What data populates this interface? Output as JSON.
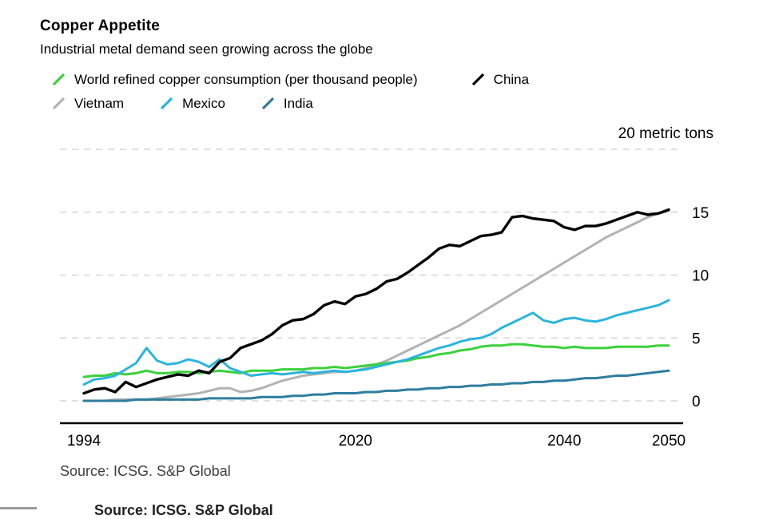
{
  "header": {
    "title": "Copper Appetite",
    "subtitle": "Industrial metal demand seen growing across the globe"
  },
  "source": {
    "text": "Source: ICSG. S&P Global",
    "cropped_text": "Source: ICSG. S&P Global"
  },
  "chart_data": {
    "type": "line",
    "title": "Copper Appetite",
    "subtitle": "Industrial metal demand seen growing across the globe",
    "unit_label": "20 metric tons",
    "legend_position": "top",
    "grid": "dashed horizontal",
    "ylim": [
      -1.8,
      21
    ],
    "yticks": [
      0,
      5,
      10,
      15,
      20
    ],
    "ytick_labels": [
      "0",
      "5",
      "10",
      "15",
      "20 metric tons"
    ],
    "xticks": [
      1994,
      2020,
      2040,
      2050
    ],
    "x": [
      1994,
      1995,
      1996,
      1997,
      1998,
      1999,
      2000,
      2001,
      2002,
      2003,
      2004,
      2005,
      2006,
      2007,
      2008,
      2009,
      2010,
      2011,
      2012,
      2013,
      2014,
      2015,
      2016,
      2017,
      2018,
      2019,
      2020,
      2021,
      2022,
      2023,
      2024,
      2025,
      2026,
      2027,
      2028,
      2029,
      2030,
      2031,
      2032,
      2033,
      2034,
      2035,
      2036,
      2037,
      2038,
      2039,
      2040,
      2041,
      2042,
      2043,
      2044,
      2045,
      2046,
      2047,
      2048,
      2049,
      2050
    ],
    "series": [
      {
        "name": "World refined copper consumption (per thousand people)",
        "color": "#3bd13b",
        "values": [
          1.9,
          2.0,
          2.0,
          2.2,
          2.1,
          2.2,
          2.4,
          2.2,
          2.2,
          2.3,
          2.3,
          2.2,
          2.3,
          2.4,
          2.3,
          2.2,
          2.4,
          2.4,
          2.4,
          2.5,
          2.5,
          2.5,
          2.6,
          2.6,
          2.7,
          2.6,
          2.7,
          2.8,
          2.9,
          3.0,
          3.1,
          3.2,
          3.4,
          3.5,
          3.7,
          3.8,
          4.0,
          4.1,
          4.3,
          4.4,
          4.4,
          4.5,
          4.5,
          4.4,
          4.3,
          4.3,
          4.2,
          4.3,
          4.2,
          4.2,
          4.2,
          4.3,
          4.3,
          4.3,
          4.3,
          4.4,
          4.4
        ]
      },
      {
        "name": "China",
        "color": "#000000",
        "values": [
          0.6,
          0.9,
          1.0,
          0.7,
          1.5,
          1.1,
          1.4,
          1.7,
          1.9,
          2.1,
          2.0,
          2.4,
          2.2,
          3.1,
          3.4,
          4.2,
          4.5,
          4.8,
          5.3,
          6.0,
          6.4,
          6.5,
          6.9,
          7.6,
          7.9,
          7.7,
          8.3,
          8.5,
          8.9,
          9.5,
          9.7,
          10.2,
          10.8,
          11.4,
          12.1,
          12.4,
          12.3,
          12.7,
          13.1,
          13.2,
          13.4,
          14.6,
          14.7,
          14.5,
          14.4,
          14.3,
          13.8,
          13.6,
          13.9,
          13.9,
          14.1,
          14.4,
          14.7,
          15.0,
          14.8,
          14.9,
          15.2
        ]
      },
      {
        "name": "Vietnam",
        "color": "#b2b2b2",
        "values": [
          0.0,
          0.0,
          0.0,
          0.1,
          0.1,
          0.1,
          0.1,
          0.2,
          0.3,
          0.4,
          0.5,
          0.6,
          0.8,
          1.0,
          1.0,
          0.7,
          0.8,
          1.0,
          1.3,
          1.6,
          1.8,
          2.0,
          2.1,
          2.2,
          2.3,
          2.3,
          2.4,
          2.6,
          2.9,
          3.2,
          3.6,
          4.0,
          4.4,
          4.8,
          5.2,
          5.6,
          6.0,
          6.5,
          7.0,
          7.5,
          8.0,
          8.5,
          9.0,
          9.5,
          10.0,
          10.5,
          11.0,
          11.5,
          12.0,
          12.5,
          13.0,
          13.4,
          13.8,
          14.2,
          14.6,
          14.9,
          15.1
        ]
      },
      {
        "name": "Mexico",
        "color": "#2ab4dd",
        "values": [
          1.3,
          1.7,
          1.8,
          2.0,
          2.5,
          3.0,
          4.2,
          3.2,
          2.9,
          3.0,
          3.3,
          3.1,
          2.7,
          3.3,
          2.6,
          2.3,
          2.0,
          2.1,
          2.2,
          2.1,
          2.2,
          2.3,
          2.2,
          2.3,
          2.4,
          2.3,
          2.4,
          2.5,
          2.7,
          2.9,
          3.1,
          3.3,
          3.6,
          3.9,
          4.2,
          4.4,
          4.7,
          4.9,
          5.0,
          5.3,
          5.8,
          6.2,
          6.6,
          7.0,
          6.4,
          6.2,
          6.5,
          6.6,
          6.4,
          6.3,
          6.5,
          6.8,
          7.0,
          7.2,
          7.4,
          7.6,
          8.0
        ]
      },
      {
        "name": "India",
        "color": "#2e7d9e",
        "values": [
          0.0,
          0.0,
          0.0,
          0.0,
          0.0,
          0.1,
          0.1,
          0.1,
          0.1,
          0.1,
          0.1,
          0.1,
          0.2,
          0.2,
          0.2,
          0.2,
          0.2,
          0.3,
          0.3,
          0.3,
          0.4,
          0.4,
          0.5,
          0.5,
          0.6,
          0.6,
          0.6,
          0.7,
          0.7,
          0.8,
          0.8,
          0.9,
          0.9,
          1.0,
          1.0,
          1.1,
          1.1,
          1.2,
          1.2,
          1.3,
          1.3,
          1.4,
          1.4,
          1.5,
          1.5,
          1.6,
          1.6,
          1.7,
          1.8,
          1.8,
          1.9,
          2.0,
          2.0,
          2.1,
          2.2,
          2.3,
          2.4
        ]
      }
    ]
  }
}
